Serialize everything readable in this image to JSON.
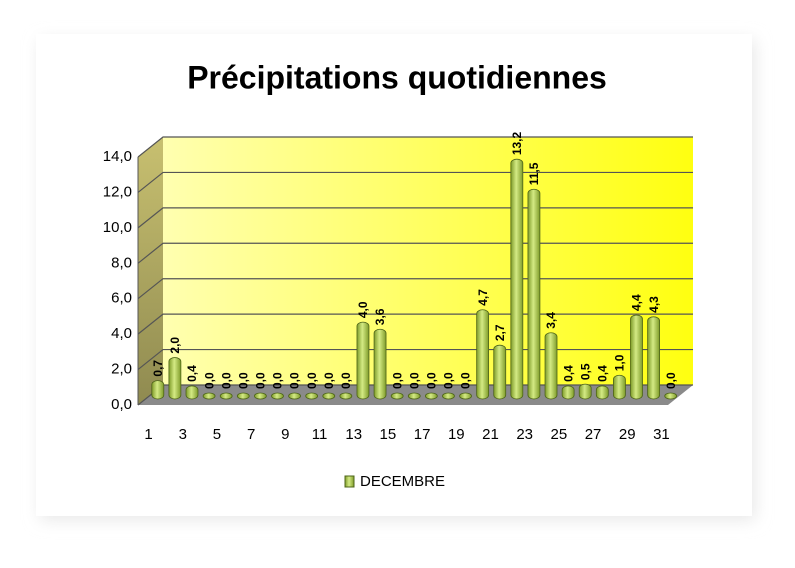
{
  "chart_data": {
    "type": "bar",
    "title": "Précipitations quotidiennes",
    "categories": [
      "1",
      null,
      "3",
      null,
      "5",
      null,
      "7",
      null,
      "9",
      null,
      "11",
      null,
      "13",
      null,
      "15",
      null,
      "17",
      null,
      "19",
      null,
      "21",
      null,
      "23",
      null,
      "25",
      null,
      "27",
      null,
      "29",
      null,
      "31"
    ],
    "series": [
      {
        "name": "DECEMBRE",
        "color": "#7f9c2a",
        "values": [
          0.7,
          2.0,
          0.4,
          0,
          0,
          0,
          0,
          0,
          0,
          0,
          0,
          0,
          4.0,
          3.6,
          0,
          0,
          0,
          0,
          0,
          4.7,
          2.7,
          13.2,
          11.5,
          3.4,
          0.4,
          0.5,
          0.4,
          1.0,
          4.4,
          4.3,
          0
        ],
        "value_labels": [
          "0,7",
          "2,0",
          "0,4",
          "0,0",
          "0,0",
          "0,0",
          "0,0",
          "0,0",
          "0,0",
          "0,0",
          "0,0",
          "0,0",
          "4,0",
          "3,6",
          "0,0",
          "0,0",
          "0,0",
          "0,0",
          "0,0",
          "4,7",
          "2,7",
          "13,2",
          "11,5",
          "3,4",
          "0,4",
          "0,5",
          "0,4",
          "1,0",
          "4,4",
          "4,3",
          "0,0"
        ]
      }
    ],
    "ylim": [
      0,
      14
    ],
    "yticks": [
      {
        "value": 0,
        "label": "0,0"
      },
      {
        "value": 2,
        "label": "2,0"
      },
      {
        "value": 4,
        "label": "4,0"
      },
      {
        "value": 6,
        "label": "6,0"
      },
      {
        "value": 8,
        "label": "8,0"
      },
      {
        "value": 10,
        "label": "10,0"
      },
      {
        "value": 12,
        "label": "12,0"
      },
      {
        "value": 14,
        "label": "14,0"
      }
    ],
    "grid": true,
    "legend": "bottom"
  }
}
